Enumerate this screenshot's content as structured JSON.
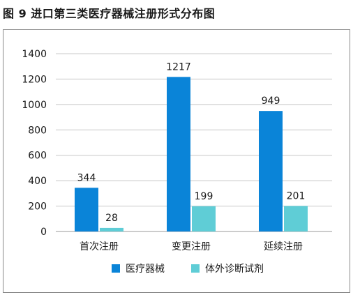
{
  "title": "图 9   进口第三类医疗器械注册形式分布图",
  "chart_data": {
    "type": "bar",
    "title": "图 9   进口第三类医疗器械注册形式分布图",
    "categories": [
      "首次注册",
      "变更注册",
      "延续注册"
    ],
    "series": [
      {
        "name": "医疗器械",
        "values": [
          344,
          1217,
          949
        ],
        "color": "#0a84d8"
      },
      {
        "name": "体外诊断试剂",
        "values": [
          28,
          199,
          201
        ],
        "color": "#5fcdd6"
      }
    ],
    "ylim": [
      0,
      1400
    ],
    "yticks": [
      0,
      200,
      400,
      600,
      800,
      1000,
      1200,
      1400
    ],
    "grid": true,
    "legend": "bottom"
  }
}
